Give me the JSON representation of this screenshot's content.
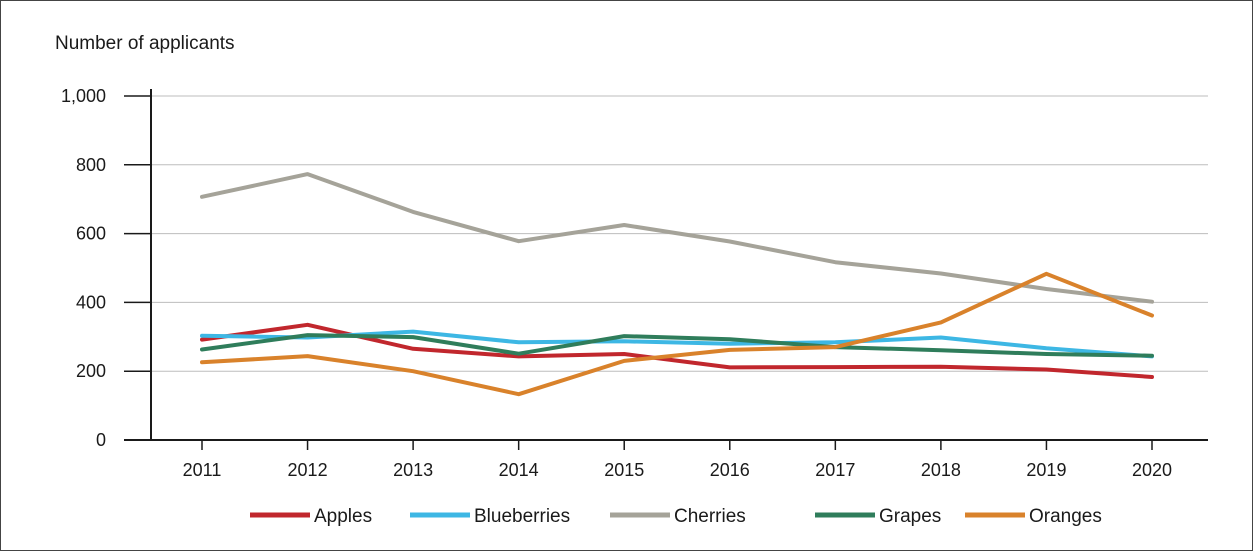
{
  "chart_data": {
    "type": "line",
    "title": "",
    "ylabel": "Number of applicants",
    "xlabel": "",
    "x": [
      2011,
      2012,
      2013,
      2014,
      2015,
      2016,
      2017,
      2018,
      2019,
      2020
    ],
    "ylim": [
      0,
      1000
    ],
    "yticks": [
      0,
      200,
      400,
      600,
      800,
      1000
    ],
    "ytick_labels": [
      "0",
      "200",
      "400",
      "600",
      "800",
      "1,000"
    ],
    "grid": "horizontal",
    "legend_position": "bottom",
    "series": [
      {
        "name": "Apples",
        "color": "#c1272d",
        "values": [
          292,
          335,
          265,
          243,
          250,
          211,
          212,
          213,
          205,
          183
        ]
      },
      {
        "name": "Blueberries",
        "color": "#3db7e4",
        "values": [
          303,
          298,
          315,
          284,
          287,
          280,
          284,
          298,
          267,
          243
        ]
      },
      {
        "name": "Cherries",
        "color": "#a5a399",
        "values": [
          707,
          773,
          663,
          578,
          625,
          577,
          517,
          484,
          439,
          402
        ]
      },
      {
        "name": "Grapes",
        "color": "#2f7d5b",
        "values": [
          263,
          305,
          299,
          251,
          302,
          293,
          270,
          261,
          250,
          245
        ]
      },
      {
        "name": "Oranges",
        "color": "#d9822b",
        "values": [
          226,
          244,
          200,
          133,
          230,
          262,
          270,
          342,
          483,
          362
        ]
      }
    ]
  }
}
